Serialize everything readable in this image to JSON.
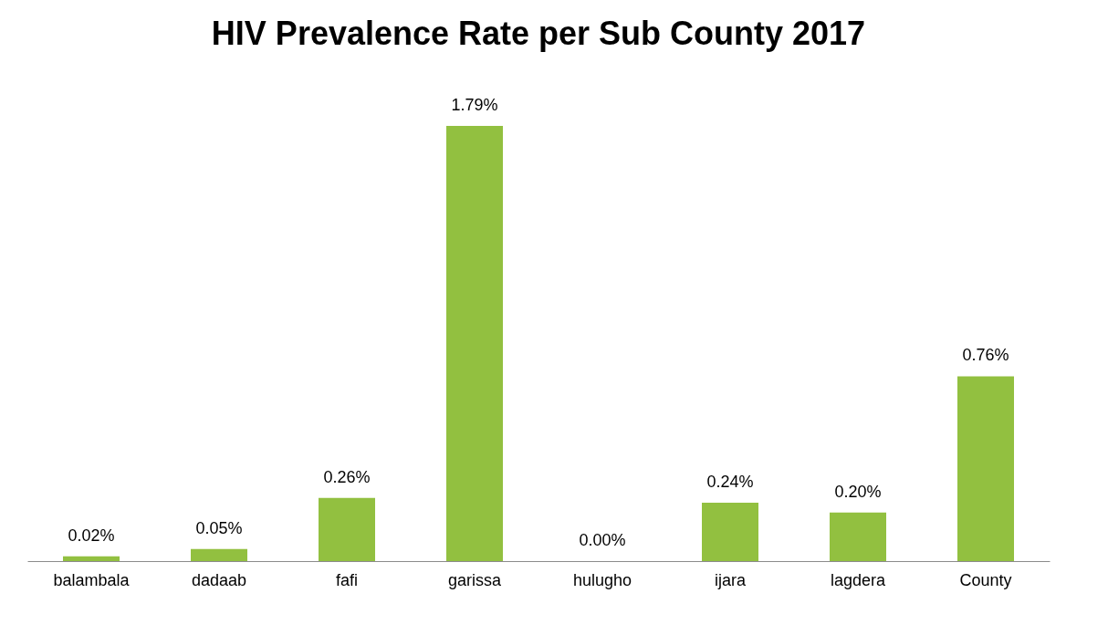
{
  "chart_data": {
    "type": "bar",
    "title": "HIV Prevalence Rate per Sub County 2017",
    "categories": [
      "balambala",
      "dadaab",
      "fafi",
      "garissa",
      "hulugho",
      "ijara",
      "lagdera",
      "County"
    ],
    "values": [
      0.02,
      0.05,
      0.26,
      1.79,
      0.0,
      0.24,
      0.2,
      0.76
    ],
    "value_labels": [
      "0.02%",
      "0.05%",
      "0.26%",
      "1.79%",
      "0.00%",
      "0.24%",
      "0.20%",
      "0.76%"
    ],
    "color": "#92c040",
    "grid": false
  }
}
